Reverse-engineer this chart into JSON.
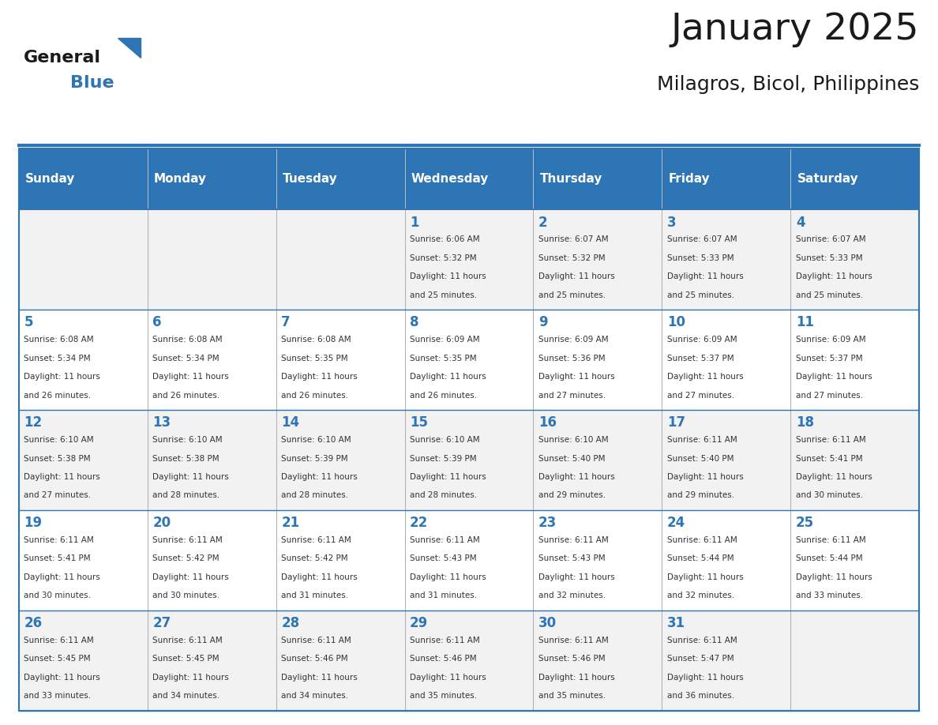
{
  "title": "January 2025",
  "subtitle": "Milagros, Bicol, Philippines",
  "days_of_week": [
    "Sunday",
    "Monday",
    "Tuesday",
    "Wednesday",
    "Thursday",
    "Friday",
    "Saturday"
  ],
  "header_bg": "#2E75B6",
  "header_text": "#FFFFFF",
  "row_bg_odd": "#F2F2F2",
  "row_bg_even": "#FFFFFF",
  "cell_border": "#2E75B6",
  "day_num_color": "#2E75B6",
  "info_color": "#333333",
  "calendar_data": [
    [
      null,
      null,
      null,
      {
        "day": 1,
        "sunrise": "6:06 AM",
        "sunset": "5:32 PM",
        "daylight": "11 hours and 25 minutes"
      },
      {
        "day": 2,
        "sunrise": "6:07 AM",
        "sunset": "5:32 PM",
        "daylight": "11 hours and 25 minutes"
      },
      {
        "day": 3,
        "sunrise": "6:07 AM",
        "sunset": "5:33 PM",
        "daylight": "11 hours and 25 minutes"
      },
      {
        "day": 4,
        "sunrise": "6:07 AM",
        "sunset": "5:33 PM",
        "daylight": "11 hours and 25 minutes"
      }
    ],
    [
      {
        "day": 5,
        "sunrise": "6:08 AM",
        "sunset": "5:34 PM",
        "daylight": "11 hours and 26 minutes"
      },
      {
        "day": 6,
        "sunrise": "6:08 AM",
        "sunset": "5:34 PM",
        "daylight": "11 hours and 26 minutes"
      },
      {
        "day": 7,
        "sunrise": "6:08 AM",
        "sunset": "5:35 PM",
        "daylight": "11 hours and 26 minutes"
      },
      {
        "day": 8,
        "sunrise": "6:09 AM",
        "sunset": "5:35 PM",
        "daylight": "11 hours and 26 minutes"
      },
      {
        "day": 9,
        "sunrise": "6:09 AM",
        "sunset": "5:36 PM",
        "daylight": "11 hours and 27 minutes"
      },
      {
        "day": 10,
        "sunrise": "6:09 AM",
        "sunset": "5:37 PM",
        "daylight": "11 hours and 27 minutes"
      },
      {
        "day": 11,
        "sunrise": "6:09 AM",
        "sunset": "5:37 PM",
        "daylight": "11 hours and 27 minutes"
      }
    ],
    [
      {
        "day": 12,
        "sunrise": "6:10 AM",
        "sunset": "5:38 PM",
        "daylight": "11 hours and 27 minutes"
      },
      {
        "day": 13,
        "sunrise": "6:10 AM",
        "sunset": "5:38 PM",
        "daylight": "11 hours and 28 minutes"
      },
      {
        "day": 14,
        "sunrise": "6:10 AM",
        "sunset": "5:39 PM",
        "daylight": "11 hours and 28 minutes"
      },
      {
        "day": 15,
        "sunrise": "6:10 AM",
        "sunset": "5:39 PM",
        "daylight": "11 hours and 28 minutes"
      },
      {
        "day": 16,
        "sunrise": "6:10 AM",
        "sunset": "5:40 PM",
        "daylight": "11 hours and 29 minutes"
      },
      {
        "day": 17,
        "sunrise": "6:11 AM",
        "sunset": "5:40 PM",
        "daylight": "11 hours and 29 minutes"
      },
      {
        "day": 18,
        "sunrise": "6:11 AM",
        "sunset": "5:41 PM",
        "daylight": "11 hours and 30 minutes"
      }
    ],
    [
      {
        "day": 19,
        "sunrise": "6:11 AM",
        "sunset": "5:41 PM",
        "daylight": "11 hours and 30 minutes"
      },
      {
        "day": 20,
        "sunrise": "6:11 AM",
        "sunset": "5:42 PM",
        "daylight": "11 hours and 30 minutes"
      },
      {
        "day": 21,
        "sunrise": "6:11 AM",
        "sunset": "5:42 PM",
        "daylight": "11 hours and 31 minutes"
      },
      {
        "day": 22,
        "sunrise": "6:11 AM",
        "sunset": "5:43 PM",
        "daylight": "11 hours and 31 minutes"
      },
      {
        "day": 23,
        "sunrise": "6:11 AM",
        "sunset": "5:43 PM",
        "daylight": "11 hours and 32 minutes"
      },
      {
        "day": 24,
        "sunrise": "6:11 AM",
        "sunset": "5:44 PM",
        "daylight": "11 hours and 32 minutes"
      },
      {
        "day": 25,
        "sunrise": "6:11 AM",
        "sunset": "5:44 PM",
        "daylight": "11 hours and 33 minutes"
      }
    ],
    [
      {
        "day": 26,
        "sunrise": "6:11 AM",
        "sunset": "5:45 PM",
        "daylight": "11 hours and 33 minutes"
      },
      {
        "day": 27,
        "sunrise": "6:11 AM",
        "sunset": "5:45 PM",
        "daylight": "11 hours and 34 minutes"
      },
      {
        "day": 28,
        "sunrise": "6:11 AM",
        "sunset": "5:46 PM",
        "daylight": "11 hours and 34 minutes"
      },
      {
        "day": 29,
        "sunrise": "6:11 AM",
        "sunset": "5:46 PM",
        "daylight": "11 hours and 35 minutes"
      },
      {
        "day": 30,
        "sunrise": "6:11 AM",
        "sunset": "5:46 PM",
        "daylight": "11 hours and 35 minutes"
      },
      {
        "day": 31,
        "sunrise": "6:11 AM",
        "sunset": "5:47 PM",
        "daylight": "11 hours and 36 minutes"
      },
      null
    ]
  ]
}
